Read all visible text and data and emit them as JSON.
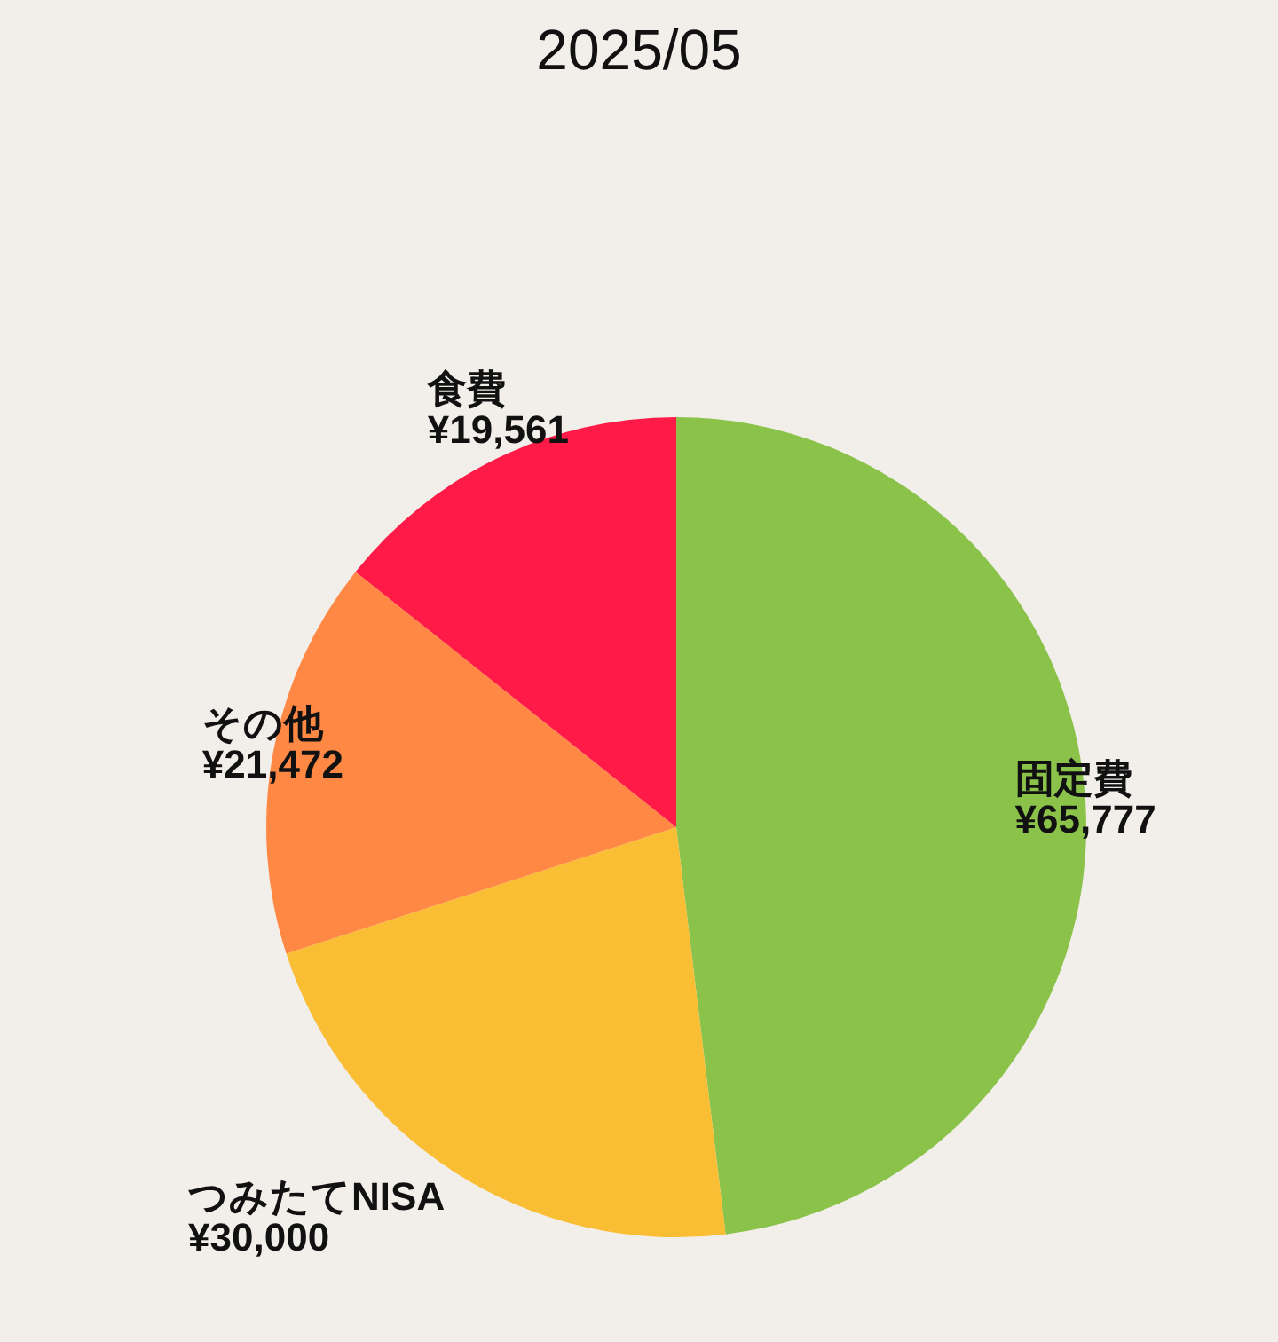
{
  "chart_data": {
    "type": "pie",
    "title": "2025/05",
    "categories": [
      "固定費",
      "つみたてNISA",
      "その他",
      "食費"
    ],
    "values": [
      65777,
      30000,
      21472,
      19561
    ],
    "colors": [
      "#8bc34a",
      "#f9be34",
      "#ff8844",
      "#ff1a47"
    ],
    "value_labels": [
      "¥65,777",
      "¥30,000",
      "¥21,472",
      "¥19,561"
    ]
  }
}
